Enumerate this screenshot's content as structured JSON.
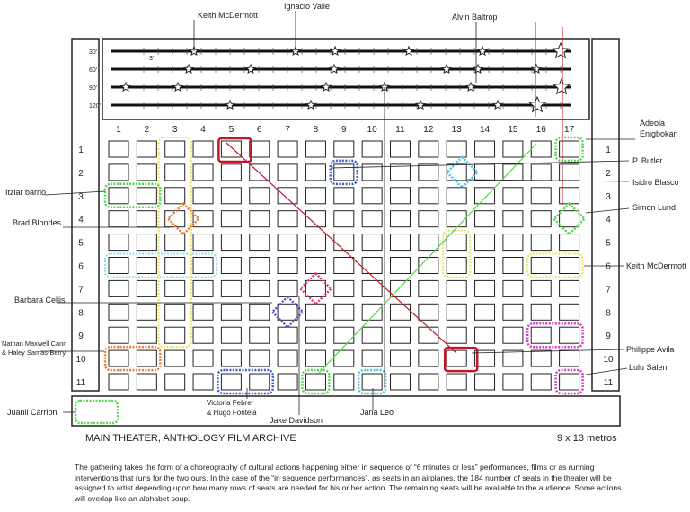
{
  "timeline": {
    "rows": [
      {
        "label": "30'",
        "tick": "3'"
      },
      {
        "label": "60'"
      },
      {
        "label": "90'"
      },
      {
        "label": "120'"
      }
    ]
  },
  "columns": [
    "1",
    "2",
    "3",
    "4",
    "5",
    "6",
    "7",
    "8",
    "9",
    "10",
    "11",
    "12",
    "13",
    "14",
    "15",
    "16",
    "17"
  ],
  "rows": [
    "1",
    "2",
    "3",
    "4",
    "5",
    "6",
    "7",
    "8",
    "9",
    "10",
    "11"
  ],
  "artists": {
    "keith_top": "Keith McDermott",
    "ignacio": "Ignacio Valle",
    "alvin": "Alvin Baltrop",
    "adeola": "Adeola Enigbokan",
    "butler": "P. Butler",
    "isidro": "Isidro Blasco",
    "simon": "Simon Lund",
    "keith_right": "Keith McDermott",
    "philippe": "Philippe Avila",
    "lulu": "Lulu Salen",
    "itziar": "Itziar barrio",
    "brad": "Brad Blondes",
    "barbara": "Barbara Cellis",
    "nathan": "Nathan Maxwell Cann & Haley Samas-Berry",
    "juanli": "Juanli Carrion",
    "victoria": "Victoria Febrer & Hugo Fontela",
    "jake": "Jake Davidson",
    "jana": "Jana Leo"
  },
  "caption": "MAIN THEATER, ANTHOLOGY FILM ARCHIVE",
  "dimensions": "9 x 13 metros",
  "description": "The gathering takes the form of a choreography of cultural actions happening either in sequence of “6 minutes or less” performances, films or as running interventions that runs for the two ours. In the case of the “in sequence performances”, as seats in an airplanes, the 184 number of seats in the theater will be assigned to artist depending upon how many rows of seats are needed for his or her action. The remaining seats will be available to the audience. Some actions will overlap like an alphabet soup.",
  "colors": {
    "red": "#c0182a",
    "green": "#52d84a",
    "blue": "#3a5bd0",
    "cyan": "#4cc4e0",
    "yellow": "#ece35a",
    "orange": "#e67a35",
    "magenta": "#d43cc8",
    "violet": "#6a4bd0",
    "pink": "#d83b80",
    "pale_cyan": "#8fdcea"
  }
}
